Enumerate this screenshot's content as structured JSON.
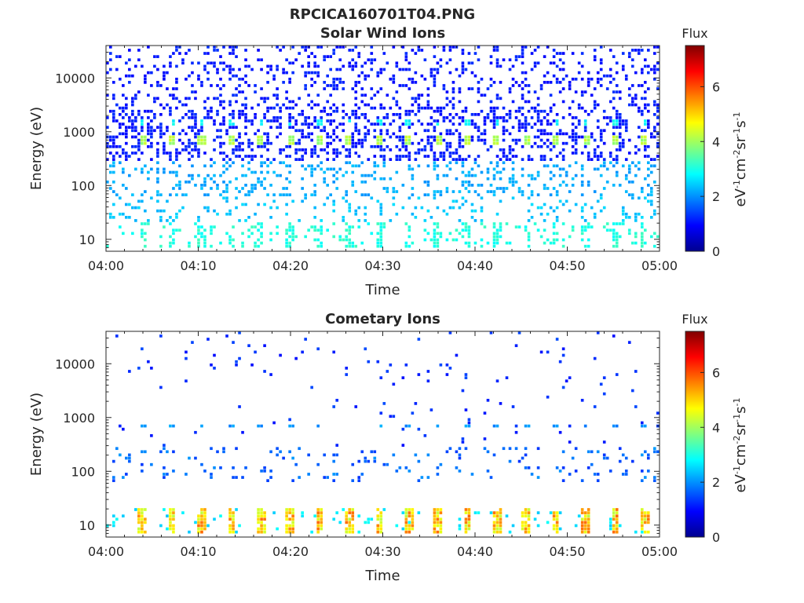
{
  "figure": {
    "title": "RPCICA160701T04.PNG"
  },
  "chart_data": [
    {
      "type": "heatmap",
      "title": "Solar Wind Ions",
      "xlabel": "Time",
      "ylabel": "Energy (eV)",
      "x_ticks": [
        "04:00",
        "04:10",
        "04:20",
        "04:30",
        "04:40",
        "04:50",
        "05:00"
      ],
      "x_range_minutes": [
        0,
        60
      ],
      "y_scale": "log",
      "y_ticks": [
        "10",
        "100",
        "1000",
        "10000"
      ],
      "y_range": [
        6,
        40000
      ],
      "colorbar": {
        "title": "Flux",
        "label": "eV-1cm-2sr-1s-1",
        "ticks": [
          "0",
          "2",
          "4",
          "6"
        ],
        "range": [
          0,
          7.5
        ],
        "colormap": "jet"
      },
      "scan_period_minutes": 3.2,
      "scan_start_minutes": 4,
      "features": [
        {
          "name": "solar wind beam",
          "energy_eV": 700,
          "flux": 3.8
        },
        {
          "name": "secondary beam",
          "energy_eV": 1500,
          "flux": 2.6
        },
        {
          "name": "low-energy band",
          "energy_eV": 12,
          "flux": 2.8
        },
        {
          "name": "background",
          "energy_eV_range": [
            60,
            40000
          ],
          "flux": 1.0
        }
      ]
    },
    {
      "type": "heatmap",
      "title": "Cometary Ions",
      "xlabel": "Time",
      "ylabel": "Energy (eV)",
      "x_ticks": [
        "04:00",
        "04:10",
        "04:20",
        "04:30",
        "04:40",
        "04:50",
        "05:00"
      ],
      "x_range_minutes": [
        0,
        60
      ],
      "y_scale": "log",
      "y_ticks": [
        "10",
        "100",
        "1000",
        "10000"
      ],
      "y_range": [
        6,
        40000
      ],
      "colorbar": {
        "title": "Flux",
        "label": "eV-1cm-2sr-1s-1",
        "ticks": [
          "0",
          "2",
          "4",
          "6"
        ],
        "range": [
          0,
          7.5
        ],
        "colormap": "jet"
      },
      "scan_period_minutes": 3.2,
      "scan_start_minutes": 4,
      "features": [
        {
          "name": "cometary low-energy ions",
          "energy_eV": 12,
          "flux": 5.0
        },
        {
          "name": "beam contamination",
          "energy_eV": 700,
          "flux": 1.8
        },
        {
          "name": "sparse background",
          "energy_eV_range": [
            60,
            40000
          ],
          "flux": 1.3
        }
      ]
    }
  ]
}
